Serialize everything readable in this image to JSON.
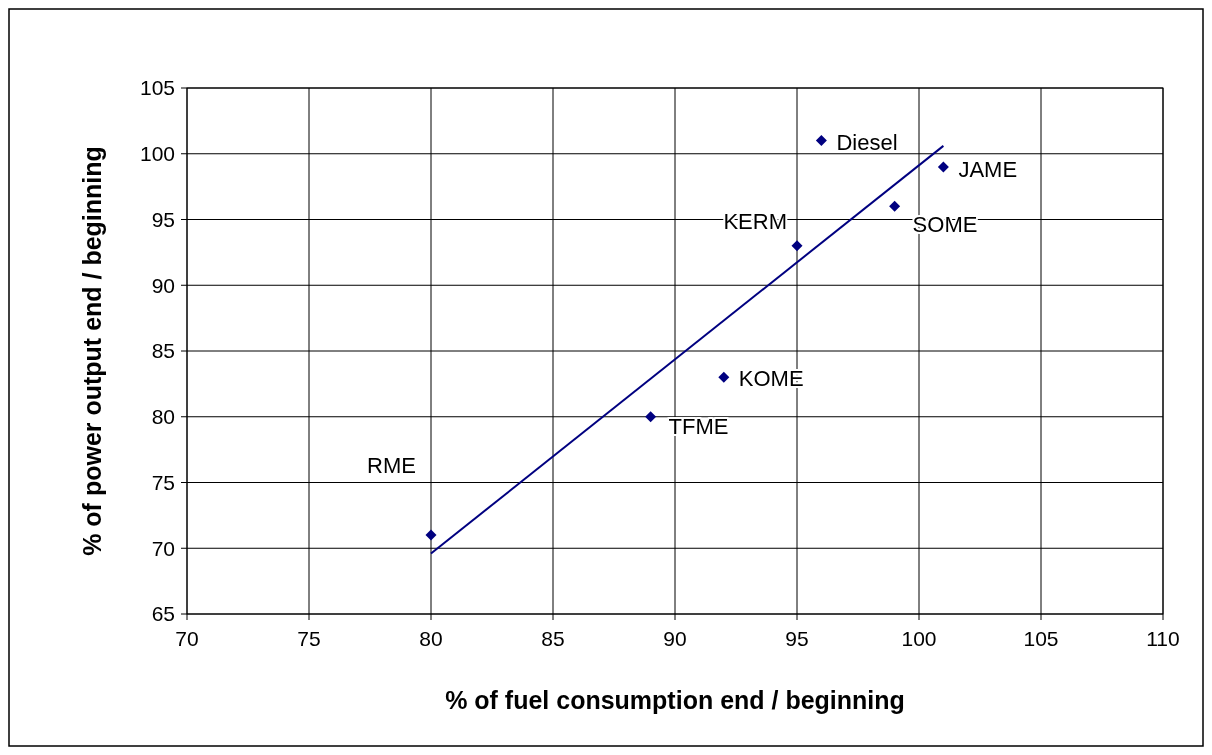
{
  "chart_data": {
    "type": "scatter",
    "xlabel": "% of fuel consumption end / beginning",
    "ylabel": "% of power output end / beginning",
    "xlim": [
      70,
      110
    ],
    "xticks": [
      70,
      75,
      80,
      85,
      90,
      95,
      100,
      105,
      110
    ],
    "ylim": [
      65,
      105
    ],
    "yticks": [
      65,
      70,
      75,
      80,
      85,
      90,
      95,
      100,
      105
    ],
    "grid": true,
    "series": [
      {
        "color": "#000080",
        "marker": "diamond",
        "x": [
          80,
          89,
          92,
          95,
          96,
          99,
          101
        ],
        "values": [
          71,
          80,
          83,
          93,
          101,
          96,
          99
        ]
      },
      {
        "type": "line",
        "color": "#000080",
        "marker": "none",
        "line_style": "solid",
        "x": [
          80,
          101
        ],
        "values": [
          69.6,
          100.6
        ]
      }
    ],
    "annotations": [
      {
        "text": "RME",
        "x": 80,
        "y": 71
      },
      {
        "text": "TFME",
        "x": 89,
        "y": 80
      },
      {
        "text": "KOME",
        "x": 92,
        "y": 83
      },
      {
        "text": "KERM",
        "x": 95,
        "y": 93
      },
      {
        "text": "Diesel",
        "x": 96,
        "y": 101
      },
      {
        "text": "SOME",
        "x": 99,
        "y": 96
      },
      {
        "text": "JAME",
        "x": 101,
        "y": 99
      }
    ]
  }
}
